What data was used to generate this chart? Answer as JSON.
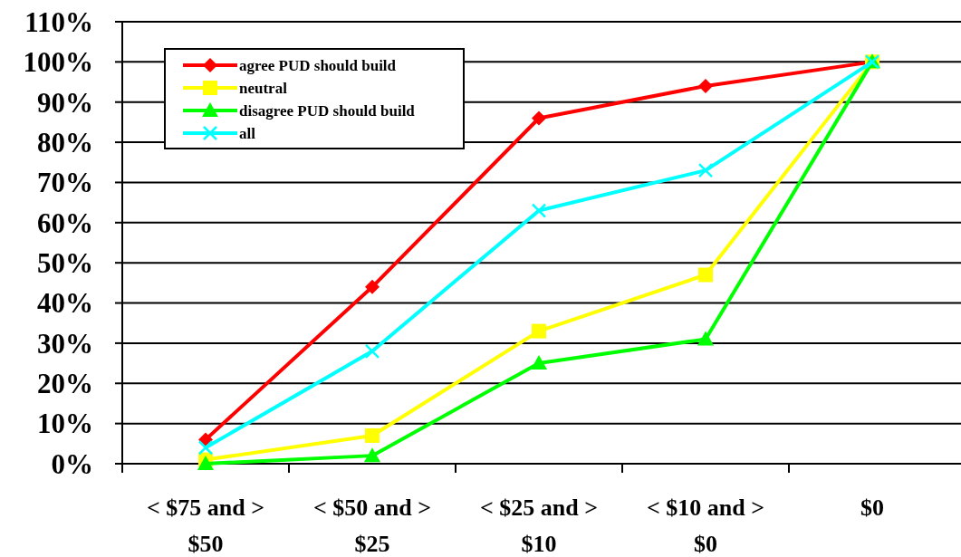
{
  "chart_data": {
    "type": "line",
    "categories": [
      "< $75 and > $50",
      "< $50 and > $25",
      "< $25 and > $10",
      "< $10 and > $0",
      "$0"
    ],
    "series": [
      {
        "name": "agree PUD should build",
        "color": "#ff0000",
        "marker": "diamond",
        "values": [
          6,
          44,
          86,
          94,
          100
        ]
      },
      {
        "name": "neutral",
        "color": "#ffff00",
        "marker": "square",
        "values": [
          1,
          7,
          33,
          47,
          100
        ]
      },
      {
        "name": "disagree PUD should build",
        "color": "#00ff00",
        "marker": "triangle",
        "values": [
          0,
          2,
          25,
          31,
          100
        ]
      },
      {
        "name": "all",
        "color": "#00ffff",
        "marker": "cross",
        "values": [
          4,
          28,
          63,
          73,
          100
        ]
      }
    ],
    "ylim": [
      0,
      110
    ],
    "yticks": [
      {
        "value": 0,
        "label": "0%"
      },
      {
        "value": 10,
        "label": "10%"
      },
      {
        "value": 20,
        "label": "20%"
      },
      {
        "value": 30,
        "label": "30%"
      },
      {
        "value": 40,
        "label": "40%"
      },
      {
        "value": 50,
        "label": "50%"
      },
      {
        "value": 60,
        "label": "60%"
      },
      {
        "value": 70,
        "label": "70%"
      },
      {
        "value": 80,
        "label": "80%"
      },
      {
        "value": 90,
        "label": "90%"
      },
      {
        "value": 100,
        "label": "100%"
      },
      {
        "value": 110,
        "label": "110%"
      }
    ],
    "grid": "y",
    "legend": "top left",
    "line_style": "solid"
  }
}
